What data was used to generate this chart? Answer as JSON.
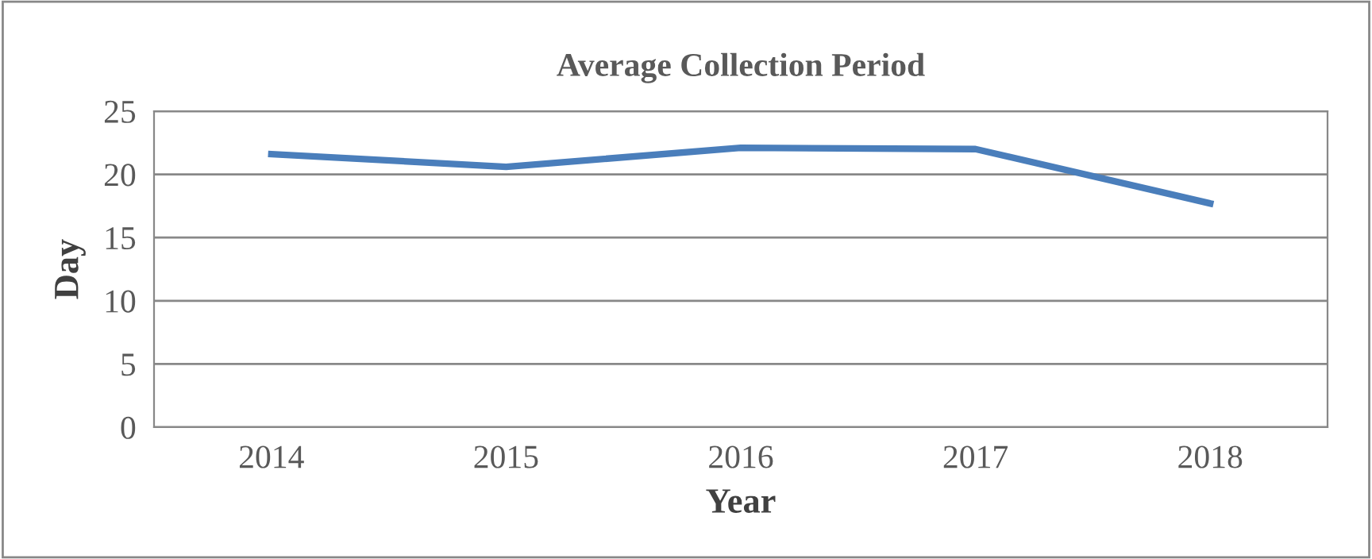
{
  "chart_data": {
    "type": "line",
    "title": "Average Collection Period",
    "xlabel": "Year",
    "ylabel": "Day",
    "categories": [
      "2014",
      "2015",
      "2016",
      "2017",
      "2018"
    ],
    "series": [
      {
        "color": "#4a7ebb",
        "values": [
          21.6,
          20.6,
          22.1,
          22.0,
          17.7
        ]
      }
    ],
    "ylim": [
      0,
      25
    ],
    "yticks": [
      0,
      5,
      10,
      15,
      20,
      25
    ],
    "grid": "y",
    "marker": "none",
    "line_style": "solid",
    "legend": false
  }
}
